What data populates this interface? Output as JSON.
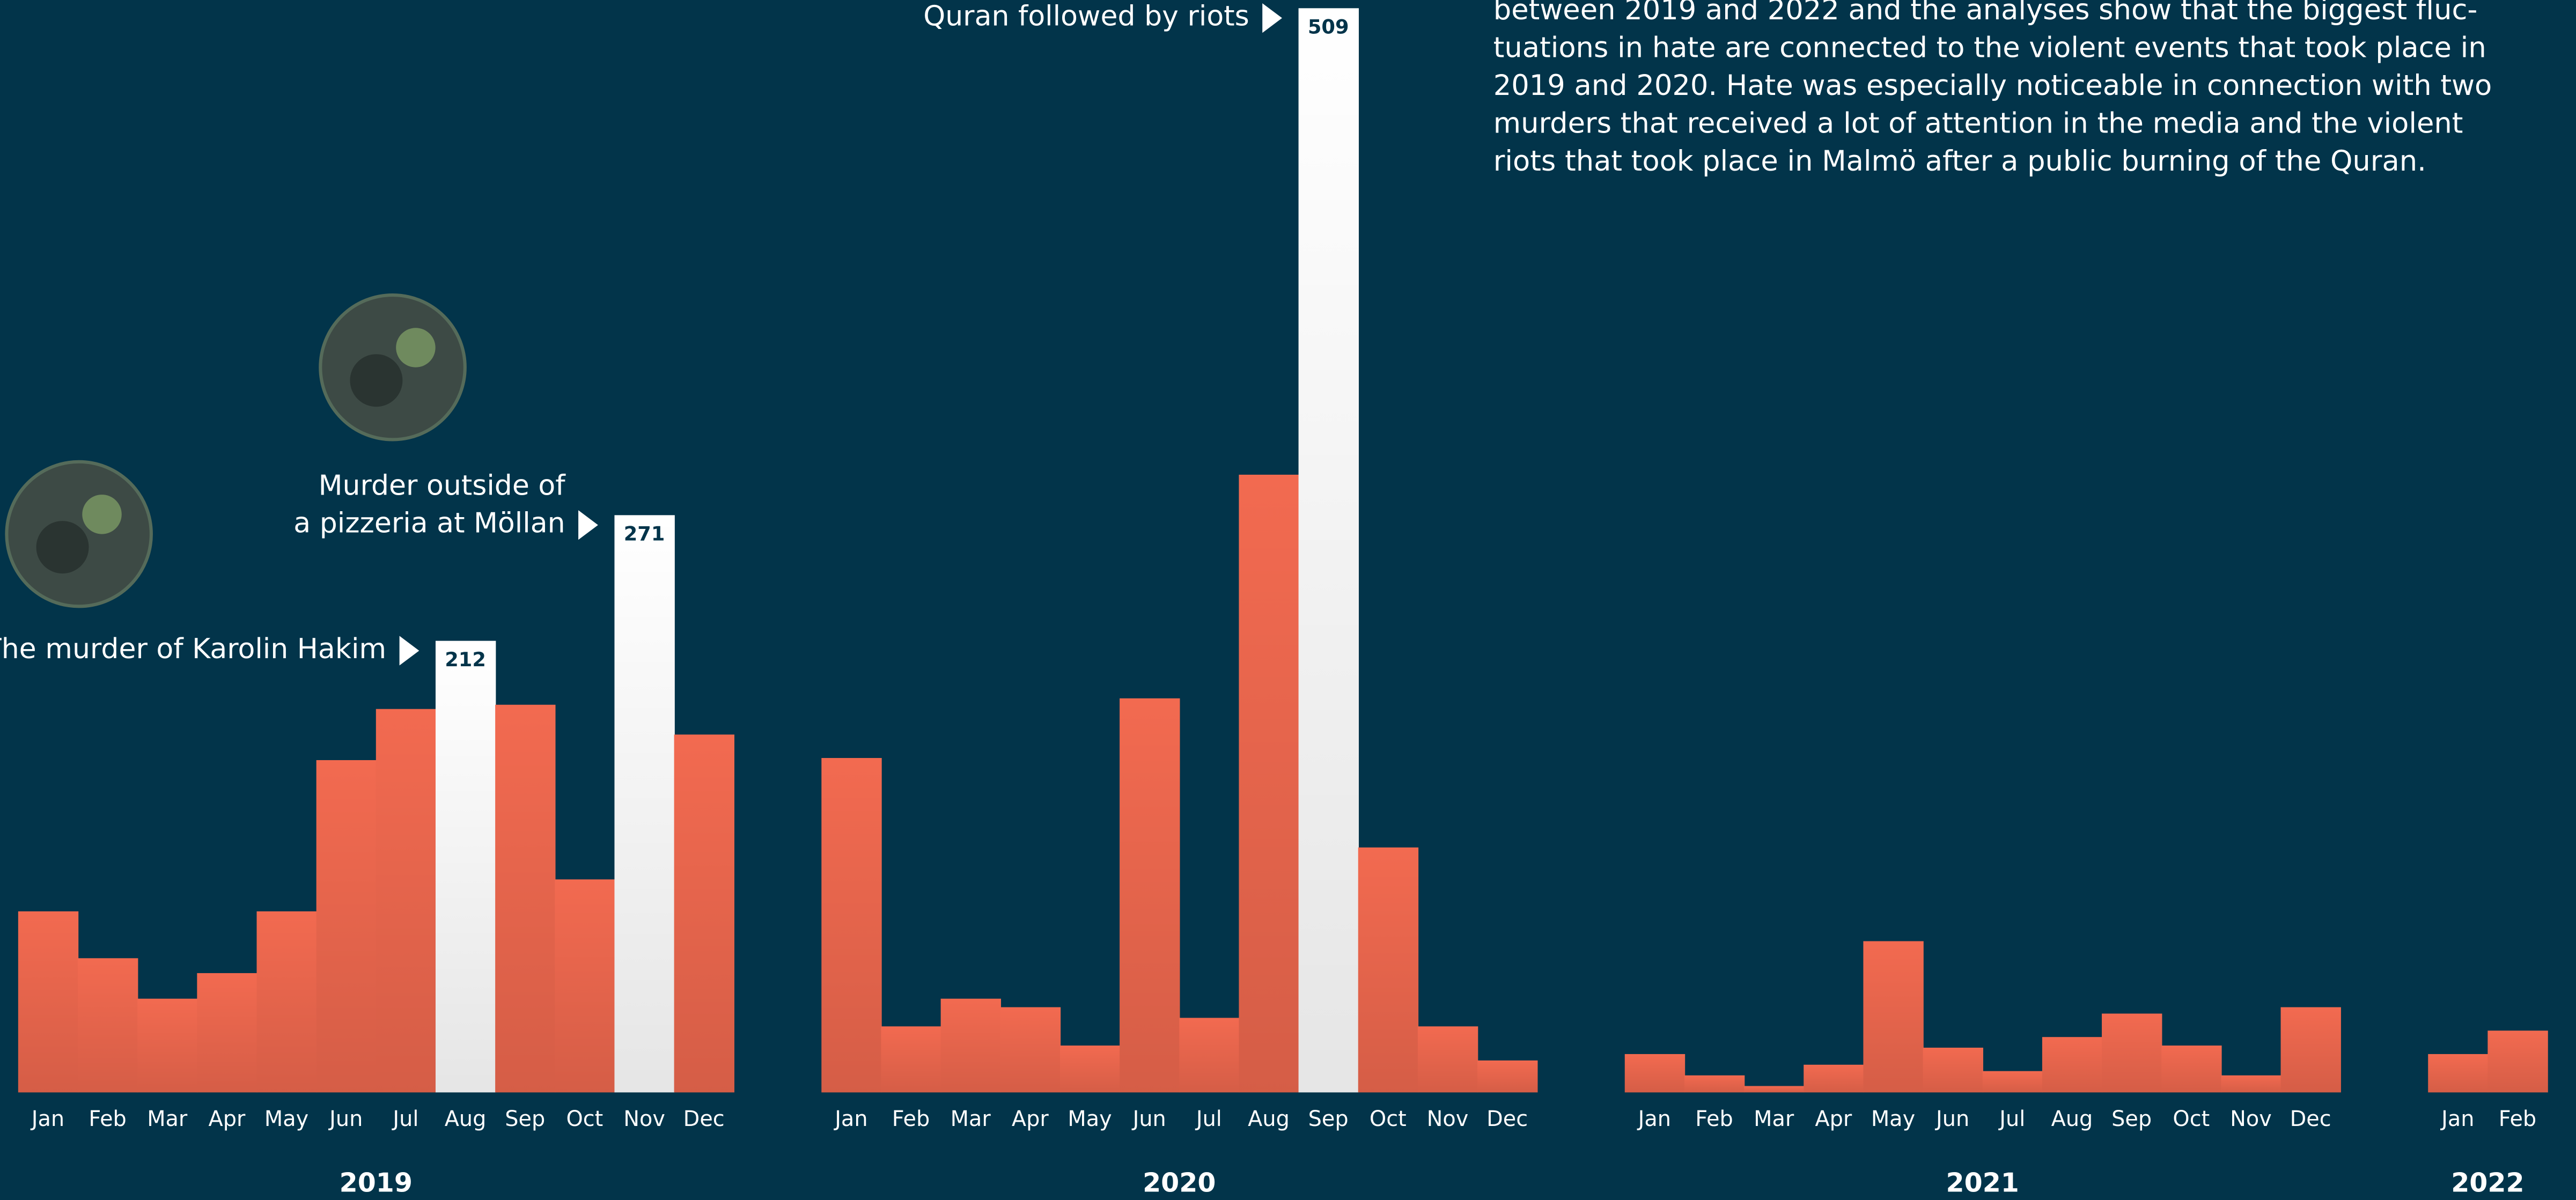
{
  "chart_data": {
    "type": "bar",
    "paragraph": [
      "between 2019 and 2022 and the analyses show that the biggest fluc-",
      "tuations in hate are connected to the violent events that took place in",
      "2019 and 2020. Hate was especially noticeable in connection with two",
      "murders that received a lot of attention in the media and the violent",
      "riots that took place in Malmö after a public burning of the Quran."
    ],
    "color": "#f26a50",
    "highlight_color": "#ffffff",
    "ylim": [
      0,
      509
    ],
    "groups": [
      {
        "year": "2019",
        "categories": [
          "Jan",
          "Feb",
          "Mar",
          "Apr",
          "May",
          "Jun",
          "Jul",
          "Aug",
          "Sep",
          "Oct",
          "Nov",
          "Dec"
        ],
        "values": [
          85,
          63,
          44,
          56,
          85,
          156,
          180,
          212,
          182,
          100,
          271,
          168
        ]
      },
      {
        "year": "2020",
        "categories": [
          "Jan",
          "Feb",
          "Mar",
          "Apr",
          "May",
          "Jun",
          "Jul",
          "Aug",
          "Sep",
          "Oct",
          "Nov",
          "Dec"
        ],
        "values": [
          157,
          31,
          44,
          40,
          22,
          185,
          35,
          290,
          509,
          115,
          31,
          15
        ]
      },
      {
        "year": "2021",
        "categories": [
          "Jan",
          "Feb",
          "Mar",
          "Apr",
          "May",
          "Jun",
          "Jul",
          "Aug",
          "Sep",
          "Oct",
          "Nov",
          "Dec"
        ],
        "values": [
          18,
          8,
          3,
          13,
          71,
          21,
          10,
          26,
          37,
          22,
          8,
          40
        ]
      },
      {
        "year": "2022",
        "categories": [
          "Jan",
          "Feb"
        ],
        "values": [
          18,
          29
        ]
      }
    ],
    "annotations": [
      {
        "lines": [
          "The murder of Karolin Hakim"
        ],
        "group": 0,
        "index": 7,
        "photo": true
      },
      {
        "lines": [
          "Murder outside of",
          "a pizzeria at Möllan"
        ],
        "group": 0,
        "index": 10,
        "photo": true
      },
      {
        "lines": [
          "Quran followed by riots"
        ],
        "group": 1,
        "index": 8,
        "photo": false
      }
    ]
  }
}
